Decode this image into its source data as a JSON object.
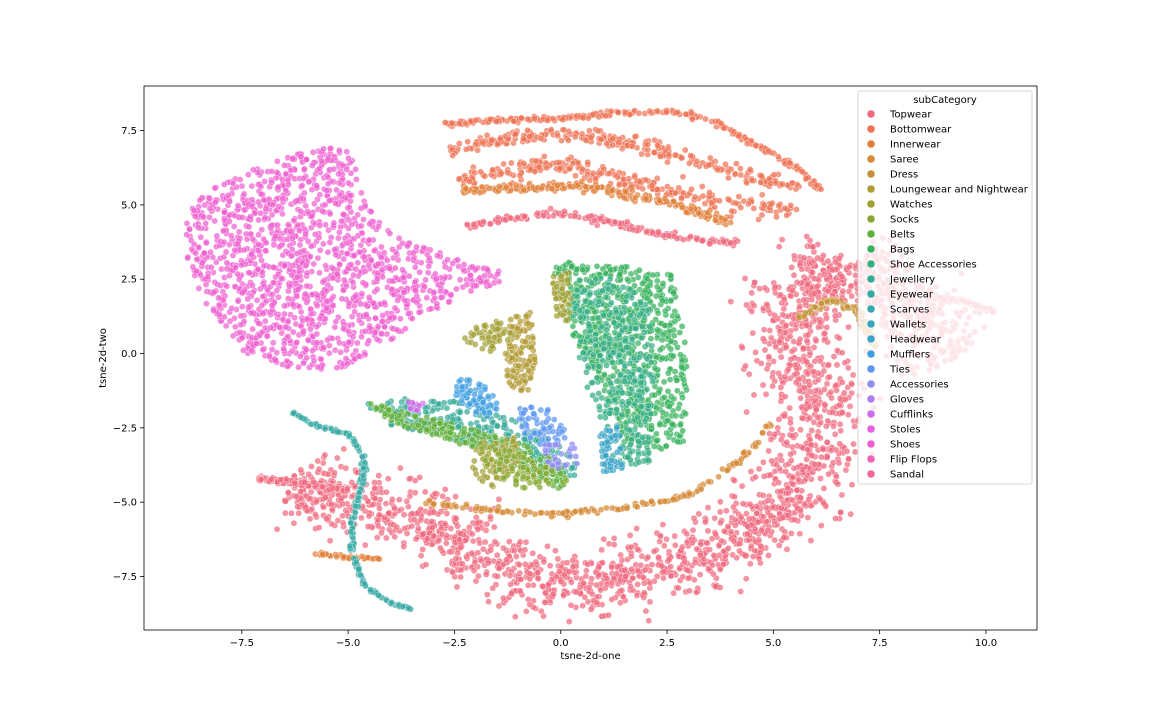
{
  "chart_data": {
    "type": "scatter",
    "title": "",
    "xlabel": "tsne-2d-one",
    "ylabel": "tsne-2d-two",
    "xlim": [
      -9.8,
      11.2
    ],
    "ylim": [
      -9.3,
      9.0
    ],
    "xticks": [
      -7.5,
      -5.0,
      -2.5,
      0.0,
      2.5,
      5.0,
      7.5,
      10.0
    ],
    "xtick_labels": [
      "−7.5",
      "−5.0",
      "−2.5",
      "0.0",
      "2.5",
      "5.0",
      "7.5",
      "10.0"
    ],
    "yticks": [
      -7.5,
      -5.0,
      -2.5,
      0.0,
      2.5,
      5.0,
      7.5
    ],
    "ytick_labels": [
      "−7.5",
      "−5.0",
      "−2.5",
      "0.0",
      "2.5",
      "5.0",
      "7.5"
    ],
    "grid": false,
    "legend": {
      "title": "subCategory",
      "placement": "top-right",
      "entries": [
        {
          "name": "Topwear",
          "color": "#f0697e"
        },
        {
          "name": "Bottomwear",
          "color": "#ee7355"
        },
        {
          "name": "Innerwear",
          "color": "#e2803a"
        },
        {
          "name": "Saree",
          "color": "#d68934"
        },
        {
          "name": "Dress",
          "color": "#c69136"
        },
        {
          "name": "Loungewear and Nightwear",
          "color": "#b29a33"
        },
        {
          "name": "Watches",
          "color": "#a2a035"
        },
        {
          "name": "Socks",
          "color": "#87a932"
        },
        {
          "name": "Belts",
          "color": "#5faf3a"
        },
        {
          "name": "Bags",
          "color": "#36b25c"
        },
        {
          "name": "Shoe Accessories",
          "color": "#35ad85"
        },
        {
          "name": "Jewellery",
          "color": "#36ab98"
        },
        {
          "name": "Eyewear",
          "color": "#37a9a4"
        },
        {
          "name": "Scarves",
          "color": "#38a7ae"
        },
        {
          "name": "Wallets",
          "color": "#3aa5ba"
        },
        {
          "name": "Headwear",
          "color": "#3aa3c8"
        },
        {
          "name": "Mufflers",
          "color": "#3f9ee0"
        },
        {
          "name": "Ties",
          "color": "#5b95f0"
        },
        {
          "name": "Accessories",
          "color": "#8e8bf2"
        },
        {
          "name": "Gloves",
          "color": "#ad7ff0"
        },
        {
          "name": "Cufflinks",
          "color": "#cd6ce8"
        },
        {
          "name": "Stoles",
          "color": "#e65fe0"
        },
        {
          "name": "Shoes",
          "color": "#ee5fd0"
        },
        {
          "name": "Flip Flops",
          "color": "#f064b8"
        },
        {
          "name": "Sandal",
          "color": "#f06896"
        }
      ]
    },
    "clusters": [
      {
        "series": "Shoes",
        "shape": "polygon",
        "n": 1400,
        "pts": [
          [
            -8.8,
            4.7
          ],
          [
            -8.2,
            5.6
          ],
          [
            -7.2,
            6.2
          ],
          [
            -6.2,
            6.7
          ],
          [
            -5.4,
            7.05
          ],
          [
            -4.9,
            6.7
          ],
          [
            -4.7,
            5.5
          ],
          [
            -4.1,
            4.2
          ],
          [
            -3.3,
            3.6
          ],
          [
            -2.2,
            3.1
          ],
          [
            -1.3,
            2.7
          ],
          [
            -1.5,
            2.3
          ],
          [
            -2.4,
            1.9
          ],
          [
            -3.4,
            1.0
          ],
          [
            -4.4,
            0.1
          ],
          [
            -5.3,
            -0.6
          ],
          [
            -6.4,
            -0.5
          ],
          [
            -7.4,
            0.0
          ],
          [
            -8.3,
            1.4
          ],
          [
            -8.8,
            3.2
          ]
        ]
      },
      {
        "series": "Bottomwear",
        "shape": "band",
        "n": 260,
        "w": 0.08,
        "pts": [
          [
            -2.8,
            7.7
          ],
          [
            -1.5,
            7.85
          ],
          [
            0.0,
            7.9
          ],
          [
            1.3,
            8.1
          ],
          [
            2.6,
            8.15
          ],
          [
            3.6,
            7.8
          ],
          [
            4.6,
            7.0
          ],
          [
            5.5,
            6.3
          ],
          [
            6.1,
            5.5
          ]
        ]
      },
      {
        "series": "Bottomwear",
        "shape": "band",
        "n": 260,
        "w": 0.25,
        "pts": [
          [
            -2.6,
            6.8
          ],
          [
            -1.5,
            7.2
          ],
          [
            0.0,
            7.4
          ],
          [
            1.5,
            7.1
          ],
          [
            3.0,
            6.6
          ],
          [
            4.3,
            6.0
          ],
          [
            5.6,
            5.6
          ]
        ]
      },
      {
        "series": "Bottomwear",
        "shape": "band",
        "n": 260,
        "w": 0.3,
        "pts": [
          [
            -2.4,
            5.8
          ],
          [
            -1.2,
            6.2
          ],
          [
            0.0,
            6.3
          ],
          [
            1.6,
            5.8
          ],
          [
            3.0,
            5.3
          ],
          [
            4.3,
            5.0
          ],
          [
            5.6,
            4.9
          ]
        ]
      },
      {
        "series": "Innerwear",
        "shape": "band",
        "n": 220,
        "w": 0.15,
        "pts": [
          [
            -2.3,
            5.5
          ],
          [
            -1.0,
            5.6
          ],
          [
            0.5,
            5.6
          ],
          [
            1.8,
            5.3
          ],
          [
            3.0,
            4.9
          ],
          [
            4.0,
            4.4
          ]
        ]
      },
      {
        "series": "Topwear",
        "shape": "band",
        "n": 180,
        "w": 0.12,
        "pts": [
          [
            -2.2,
            4.3
          ],
          [
            -1.0,
            4.6
          ],
          [
            0.0,
            4.7
          ],
          [
            1.2,
            4.4
          ],
          [
            2.4,
            4.0
          ],
          [
            3.4,
            3.8
          ],
          [
            4.2,
            3.7
          ]
        ]
      },
      {
        "series": "Topwear",
        "shape": "band",
        "n": 2200,
        "w": 1.1,
        "pts": [
          [
            -6.4,
            -4.5
          ],
          [
            -5.2,
            -4.9
          ],
          [
            -4.0,
            -5.2
          ],
          [
            -2.8,
            -5.7
          ],
          [
            -1.5,
            -7.3
          ],
          [
            0.0,
            -7.8
          ],
          [
            1.5,
            -7.6
          ],
          [
            3.0,
            -7.1
          ],
          [
            4.5,
            -6.0
          ],
          [
            5.6,
            -4.5
          ],
          [
            6.1,
            -2.8
          ],
          [
            5.9,
            -0.8
          ],
          [
            5.3,
            1.0
          ],
          [
            5.6,
            2.3
          ],
          [
            6.8,
            3.0
          ],
          [
            8.0,
            2.2
          ],
          [
            8.5,
            0.8
          ],
          [
            9.2,
            -0.2
          ]
        ]
      },
      {
        "series": "Topwear",
        "shape": "band",
        "n": 160,
        "w": 0.08,
        "pts": [
          [
            -7.1,
            -4.2
          ],
          [
            -6.0,
            -4.4
          ],
          [
            -5.0,
            -4.6
          ]
        ]
      },
      {
        "series": "Topwear",
        "shape": "band",
        "n": 120,
        "w": 0.06,
        "pts": [
          [
            8.6,
            1.9
          ],
          [
            9.4,
            1.8
          ],
          [
            10.2,
            1.4
          ]
        ]
      },
      {
        "series": "Saree",
        "shape": "band",
        "n": 160,
        "w": 0.08,
        "pts": [
          [
            -3.2,
            -5.0
          ],
          [
            -1.5,
            -5.3
          ],
          [
            0.0,
            -5.4
          ],
          [
            1.5,
            -5.2
          ],
          [
            3.0,
            -4.8
          ],
          [
            4.2,
            -3.6
          ],
          [
            5.0,
            -2.3
          ]
        ]
      },
      {
        "series": "Dress",
        "shape": "band",
        "n": 120,
        "w": 0.1,
        "pts": [
          [
            5.6,
            1.2
          ],
          [
            6.3,
            1.8
          ],
          [
            7.0,
            1.4
          ],
          [
            7.4,
            0.2
          ]
        ]
      },
      {
        "series": "Innerwear",
        "shape": "band",
        "n": 40,
        "w": 0.05,
        "pts": [
          [
            -6.0,
            -6.7
          ],
          [
            -5.0,
            -6.85
          ],
          [
            -4.2,
            -6.9
          ]
        ]
      },
      {
        "series": "Eyewear",
        "shape": "band",
        "n": 200,
        "w": 0.05,
        "pts": [
          [
            -6.3,
            -2.0
          ],
          [
            -5.8,
            -2.4
          ],
          [
            -5.0,
            -2.7
          ],
          [
            -4.6,
            -3.5
          ],
          [
            -4.7,
            -4.5
          ],
          [
            -4.9,
            -5.6
          ],
          [
            -4.9,
            -6.8
          ],
          [
            -4.6,
            -7.8
          ],
          [
            -4.0,
            -8.4
          ],
          [
            -3.5,
            -8.6
          ]
        ]
      },
      {
        "series": "Bags",
        "shape": "polygon",
        "n": 700,
        "pts": [
          [
            0.0,
            3.1
          ],
          [
            1.0,
            3.0
          ],
          [
            2.0,
            2.9
          ],
          [
            2.6,
            2.7
          ],
          [
            2.9,
            1.0
          ],
          [
            3.0,
            -1.0
          ],
          [
            2.9,
            -3.0
          ],
          [
            2.3,
            -3.3
          ],
          [
            1.5,
            -3.0
          ],
          [
            0.9,
            -1.0
          ],
          [
            0.2,
            0.8
          ],
          [
            -0.2,
            2.7
          ]
        ]
      },
      {
        "series": "Shoe Accessories",
        "shape": "polygon",
        "n": 350,
        "pts": [
          [
            0.3,
            2.5
          ],
          [
            1.4,
            2.6
          ],
          [
            2.1,
            1.5
          ],
          [
            2.2,
            -1.0
          ],
          [
            2.1,
            -3.8
          ],
          [
            1.3,
            -3.7
          ],
          [
            0.8,
            -2.0
          ],
          [
            0.3,
            0.5
          ]
        ]
      },
      {
        "series": "Jewellery",
        "shape": "polygon",
        "n": 300,
        "pts": [
          [
            -4.6,
            -1.7
          ],
          [
            -3.5,
            -1.5
          ],
          [
            -2.5,
            -1.6
          ],
          [
            -1.5,
            -2.0
          ],
          [
            -0.5,
            -2.6
          ],
          [
            0.3,
            -3.5
          ],
          [
            0.4,
            -4.2
          ],
          [
            -0.5,
            -4.0
          ],
          [
            -1.5,
            -3.3
          ],
          [
            -2.8,
            -2.8
          ],
          [
            -4.0,
            -2.4
          ]
        ]
      },
      {
        "series": "Belts",
        "shape": "polygon",
        "n": 240,
        "pts": [
          [
            -4.6,
            -1.6
          ],
          [
            -4.0,
            -2.3
          ],
          [
            -2.8,
            -2.9
          ],
          [
            -1.6,
            -3.3
          ],
          [
            -0.6,
            -4.2
          ],
          [
            0.2,
            -4.7
          ],
          [
            0.0,
            -3.6
          ],
          [
            -1.0,
            -3.0
          ],
          [
            -2.4,
            -2.4
          ],
          [
            -3.6,
            -2.0
          ]
        ]
      },
      {
        "series": "Loungewear and Nightwear",
        "shape": "polygon",
        "n": 130,
        "pts": [
          [
            -1.2,
            1.2
          ],
          [
            -0.7,
            1.4
          ],
          [
            -0.6,
            -0.3
          ],
          [
            -0.8,
            -1.4
          ],
          [
            -1.3,
            -1.0
          ],
          [
            -1.3,
            0.3
          ]
        ]
      },
      {
        "series": "Watches",
        "shape": "polygon",
        "n": 60,
        "pts": [
          [
            -2.2,
            0.8
          ],
          [
            -1.5,
            1.2
          ],
          [
            -1.1,
            0.6
          ],
          [
            -1.7,
            0.0
          ],
          [
            -2.3,
            0.3
          ]
        ]
      },
      {
        "series": "Watches",
        "shape": "polygon",
        "n": 90,
        "pts": [
          [
            -2.0,
            -3.0
          ],
          [
            -1.1,
            -2.8
          ],
          [
            -0.9,
            -3.8
          ],
          [
            -1.6,
            -4.5
          ],
          [
            -2.1,
            -4.1
          ]
        ]
      },
      {
        "series": "Watches",
        "shape": "polygon",
        "n": 50,
        "pts": [
          [
            -0.2,
            2.6
          ],
          [
            0.2,
            2.8
          ],
          [
            0.3,
            1.2
          ],
          [
            -0.1,
            1.0
          ]
        ]
      },
      {
        "series": "Mufflers",
        "shape": "polygon",
        "n": 70,
        "pts": [
          [
            -2.4,
            -0.8
          ],
          [
            -1.8,
            -1.0
          ],
          [
            -1.4,
            -1.8
          ],
          [
            -1.8,
            -2.2
          ],
          [
            -2.6,
            -1.4
          ]
        ]
      },
      {
        "series": "Ties",
        "shape": "polygon",
        "n": 60,
        "pts": [
          [
            -1.0,
            -1.8
          ],
          [
            -0.2,
            -1.8
          ],
          [
            0.2,
            -2.8
          ],
          [
            -0.4,
            -3.2
          ],
          [
            -1.0,
            -2.6
          ]
        ]
      },
      {
        "series": "Accessories",
        "shape": "polygon",
        "n": 30,
        "pts": [
          [
            -0.4,
            -3.0
          ],
          [
            0.3,
            -3.0
          ],
          [
            0.4,
            -3.8
          ],
          [
            -0.3,
            -3.9
          ]
        ]
      },
      {
        "series": "Cufflinks",
        "shape": "polygon",
        "n": 12,
        "pts": [
          [
            -3.6,
            -1.6
          ],
          [
            -3.2,
            -1.6
          ],
          [
            -3.2,
            -2.0
          ],
          [
            -3.6,
            -2.0
          ]
        ]
      },
      {
        "series": "Headwear",
        "shape": "polygon",
        "n": 60,
        "pts": [
          [
            0.9,
            -2.6
          ],
          [
            1.4,
            -2.4
          ],
          [
            1.5,
            -3.9
          ],
          [
            1.0,
            -4.0
          ]
        ]
      },
      {
        "series": "Socks",
        "shape": "polygon",
        "n": 80,
        "pts": [
          [
            -1.9,
            -3.0
          ],
          [
            -0.8,
            -3.4
          ],
          [
            0.2,
            -4.3
          ],
          [
            -0.6,
            -4.7
          ],
          [
            -1.7,
            -4.0
          ]
        ]
      }
    ]
  }
}
